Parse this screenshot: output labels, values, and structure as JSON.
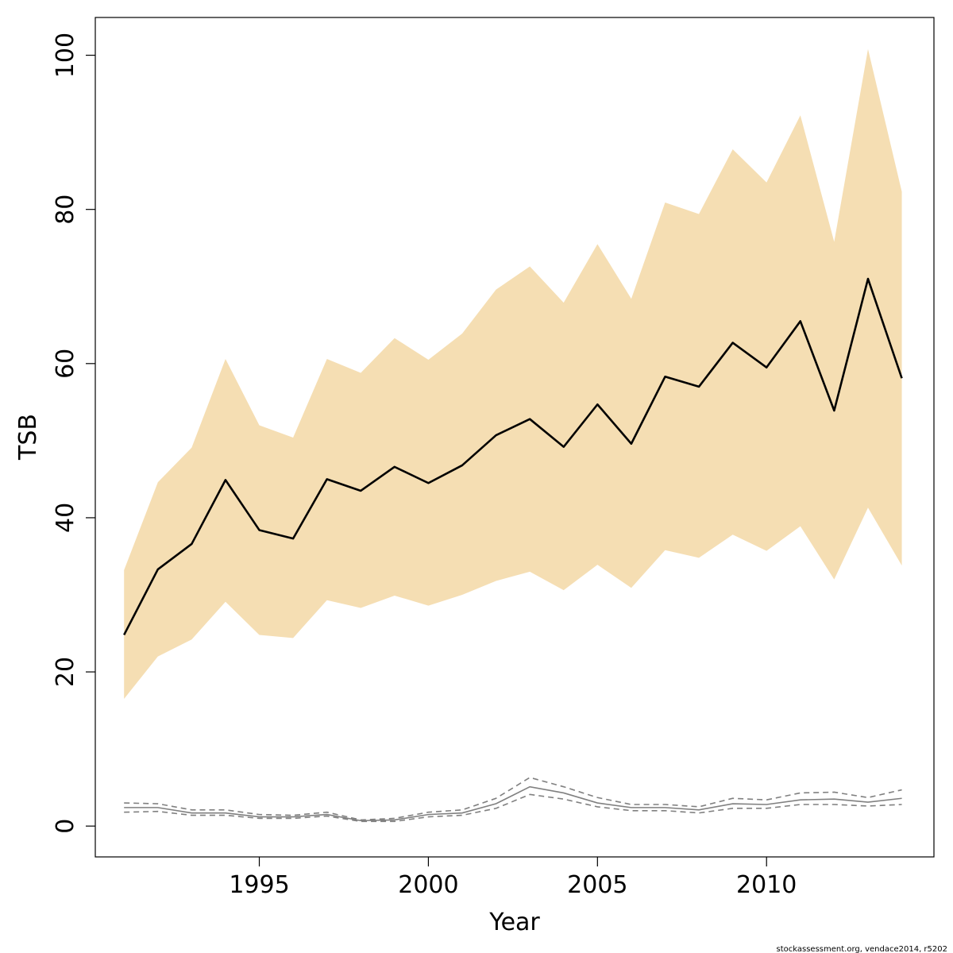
{
  "chart_data": {
    "type": "line",
    "title": "",
    "xlabel": "Year",
    "ylabel": "TSB",
    "x": [
      1991,
      1992,
      1993,
      1994,
      1995,
      1996,
      1997,
      1998,
      1999,
      2000,
      2001,
      2002,
      2003,
      2004,
      2005,
      2006,
      2007,
      2008,
      2009,
      2010,
      2011,
      2012,
      2013,
      2014
    ],
    "xlim": [
      1990.15,
      2014.95
    ],
    "ylim": [
      -4,
      104.9
    ],
    "x_ticks": [
      1995,
      2000,
      2005,
      2010
    ],
    "y_ticks": [
      0,
      20,
      40,
      60,
      80,
      100
    ],
    "grid": false,
    "legend": "none",
    "series": [
      {
        "role": "estimate",
        "values": [
          24.8,
          33.3,
          36.6,
          44.9,
          38.4,
          37.3,
          45.0,
          43.5,
          46.6,
          44.5,
          46.8,
          50.7,
          52.8,
          49.2,
          54.7,
          49.6,
          58.3,
          57.0,
          62.7,
          59.5,
          65.5,
          53.9,
          71.0,
          58.1
        ]
      },
      {
        "role": "confidence-band-lower",
        "values": [
          16.5,
          22.0,
          24.2,
          29.1,
          24.8,
          24.4,
          29.3,
          28.3,
          29.9,
          28.6,
          30.0,
          31.8,
          33.0,
          30.6,
          33.9,
          30.9,
          35.8,
          34.8,
          37.8,
          35.7,
          38.9,
          32.0,
          41.3,
          33.8
        ]
      },
      {
        "role": "confidence-band-upper",
        "values": [
          33.2,
          44.6,
          49.1,
          60.6,
          52.0,
          50.4,
          60.6,
          58.8,
          63.3,
          60.5,
          63.9,
          69.6,
          72.6,
          67.9,
          75.5,
          68.4,
          80.9,
          79.4,
          87.8,
          83.5,
          92.2,
          75.8,
          100.8,
          82.3
        ]
      },
      {
        "role": "secondary-estimate",
        "values": [
          2.4,
          2.4,
          1.7,
          1.7,
          1.2,
          1.2,
          1.5,
          0.7,
          0.8,
          1.5,
          1.7,
          2.9,
          5.1,
          4.3,
          3.0,
          2.4,
          2.4,
          2.1,
          2.9,
          2.8,
          3.4,
          3.5,
          3.1,
          3.6
        ]
      },
      {
        "role": "secondary-lower",
        "values": [
          1.8,
          1.9,
          1.4,
          1.4,
          1.0,
          1.0,
          1.3,
          0.6,
          0.6,
          1.2,
          1.4,
          2.3,
          4.1,
          3.5,
          2.5,
          2.0,
          2.0,
          1.7,
          2.3,
          2.3,
          2.8,
          2.8,
          2.6,
          2.8
        ]
      },
      {
        "role": "secondary-upper",
        "values": [
          3.0,
          2.9,
          2.1,
          2.1,
          1.5,
          1.4,
          1.8,
          0.8,
          1.0,
          1.8,
          2.1,
          3.6,
          6.3,
          5.1,
          3.7,
          2.8,
          2.8,
          2.5,
          3.6,
          3.4,
          4.3,
          4.4,
          3.7,
          4.7
        ]
      }
    ],
    "colors": {
      "band": "#F5DEB3",
      "estimate_line": "#000000",
      "secondary_line": "#808080",
      "frame": "#000000"
    }
  },
  "footer": {
    "note": "stockassessment.org, vendace2014, r5202"
  }
}
